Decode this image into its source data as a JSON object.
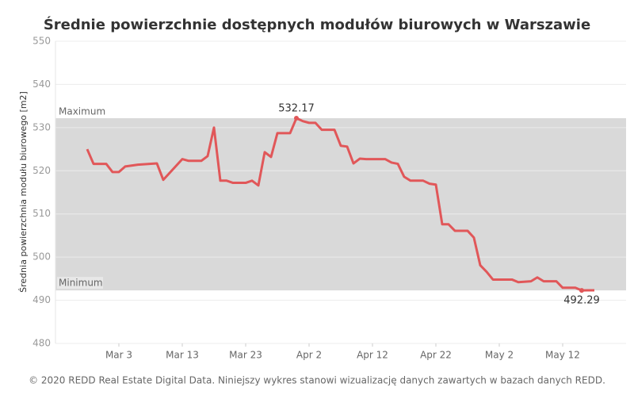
{
  "chart_data": {
    "type": "line",
    "title": "Średnie powierzchnie dostępnych modułów biurowych w Warszawie",
    "y_label": "Średnia powierzchnia modułu biurowego [m2]",
    "footer": "© 2020 REDD Real Estate Digital Data. Niniejszy wykres stanowi wizualizację danych zawartych w bazach danych REDD.",
    "x": [
      "Feb 27",
      "Feb 28",
      "Mar 1",
      "Mar 2",
      "Mar 3",
      "Mar 4",
      "Mar 6",
      "Mar 9",
      "Mar 10",
      "Mar 13",
      "Mar 14",
      "Mar 16",
      "Mar 17",
      "Mar 18",
      "Mar 19",
      "Mar 20",
      "Mar 21",
      "Mar 23",
      "Mar 24",
      "Mar 25",
      "Mar 26",
      "Mar 27",
      "Mar 28",
      "Mar 30",
      "Mar 31",
      "Apr 1",
      "Apr 2",
      "Apr 3",
      "Apr 4",
      "Apr 6",
      "Apr 7",
      "Apr 8",
      "Apr 9",
      "Apr 10",
      "Apr 11",
      "Apr 14",
      "Apr 15",
      "Apr 16",
      "Apr 17",
      "Apr 18",
      "Apr 20",
      "Apr 21",
      "Apr 22",
      "Apr 23",
      "Apr 24",
      "Apr 25",
      "Apr 27",
      "Apr 28",
      "Apr 29",
      "Apr 30",
      "May 1",
      "May 4",
      "May 5",
      "May 7",
      "May 8",
      "May 9",
      "May 11",
      "May 12",
      "May 14",
      "May 15",
      "May 16",
      "May 17"
    ],
    "series": [
      {
        "name": "Średnia powierzchnia",
        "color": "#e15759",
        "values": [
          525.0,
          521.6,
          521.6,
          519.7,
          519.7,
          521.0,
          521.4,
          521.7,
          517.9,
          522.7,
          522.3,
          522.3,
          523.4,
          530.0,
          517.7,
          517.7,
          517.2,
          517.2,
          517.7,
          516.6,
          524.3,
          523.2,
          528.7,
          528.7,
          532.17,
          531.5,
          531.1,
          531.1,
          529.5,
          529.5,
          525.8,
          525.6,
          521.7,
          522.8,
          522.7,
          522.7,
          521.9,
          521.6,
          518.6,
          517.7,
          517.7,
          517.0,
          516.8,
          507.6,
          507.6,
          506.1,
          506.1,
          504.5,
          498.1,
          496.6,
          494.8,
          494.8,
          494.2,
          494.4,
          495.3,
          494.4,
          494.4,
          492.9,
          492.9,
          492.29,
          492.3,
          492.3
        ]
      }
    ],
    "xlim": [
      "Feb 22",
      "May 22"
    ],
    "xticks": [
      "Mar 3",
      "Mar 13",
      "Mar 23",
      "Apr 2",
      "Apr 12",
      "Apr 22",
      "May 2",
      "May 12"
    ],
    "ylim": [
      480,
      550
    ],
    "yticks": [
      480,
      490,
      500,
      510,
      520,
      530,
      540,
      550
    ],
    "grid": true,
    "reference_band": {
      "max": 532.17,
      "min": 492.29,
      "max_label": "Maximum",
      "min_label": "Minimum",
      "color": "#d9d9d9"
    },
    "annotations": [
      {
        "x": "Mar 31",
        "value": 532.17
      },
      {
        "x": "May 15",
        "value": 492.29
      }
    ]
  }
}
